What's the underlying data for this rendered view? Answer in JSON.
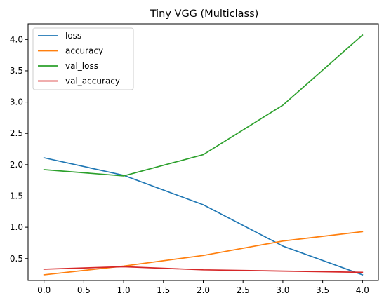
{
  "chart_data": {
    "type": "line",
    "title": "Tiny VGG (Multiclass)",
    "xlabel": "",
    "ylabel": "",
    "x": [
      0,
      1,
      2,
      3,
      4
    ],
    "xlim": [
      -0.2,
      4.2
    ],
    "ylim": [
      0.15,
      4.25
    ],
    "xticks": [
      "0.0",
      "0.5",
      "1.0",
      "1.5",
      "2.0",
      "2.5",
      "3.0",
      "3.5",
      "4.0"
    ],
    "yticks": [
      "0.5",
      "1.0",
      "1.5",
      "2.0",
      "2.5",
      "3.0",
      "3.5",
      "4.0"
    ],
    "grid": false,
    "legend_position": "top-left",
    "series": [
      {
        "name": "loss",
        "color": "#1f77b4",
        "values": [
          2.11,
          1.83,
          1.36,
          0.7,
          0.24
        ]
      },
      {
        "name": "accuracy",
        "color": "#ff7f0e",
        "values": [
          0.24,
          0.38,
          0.55,
          0.78,
          0.93
        ]
      },
      {
        "name": "val_loss",
        "color": "#2ca02c",
        "values": [
          1.92,
          1.82,
          2.16,
          2.95,
          4.07
        ]
      },
      {
        "name": "val_accuracy",
        "color": "#d62728",
        "values": [
          0.33,
          0.37,
          0.32,
          0.3,
          0.28
        ]
      }
    ]
  }
}
